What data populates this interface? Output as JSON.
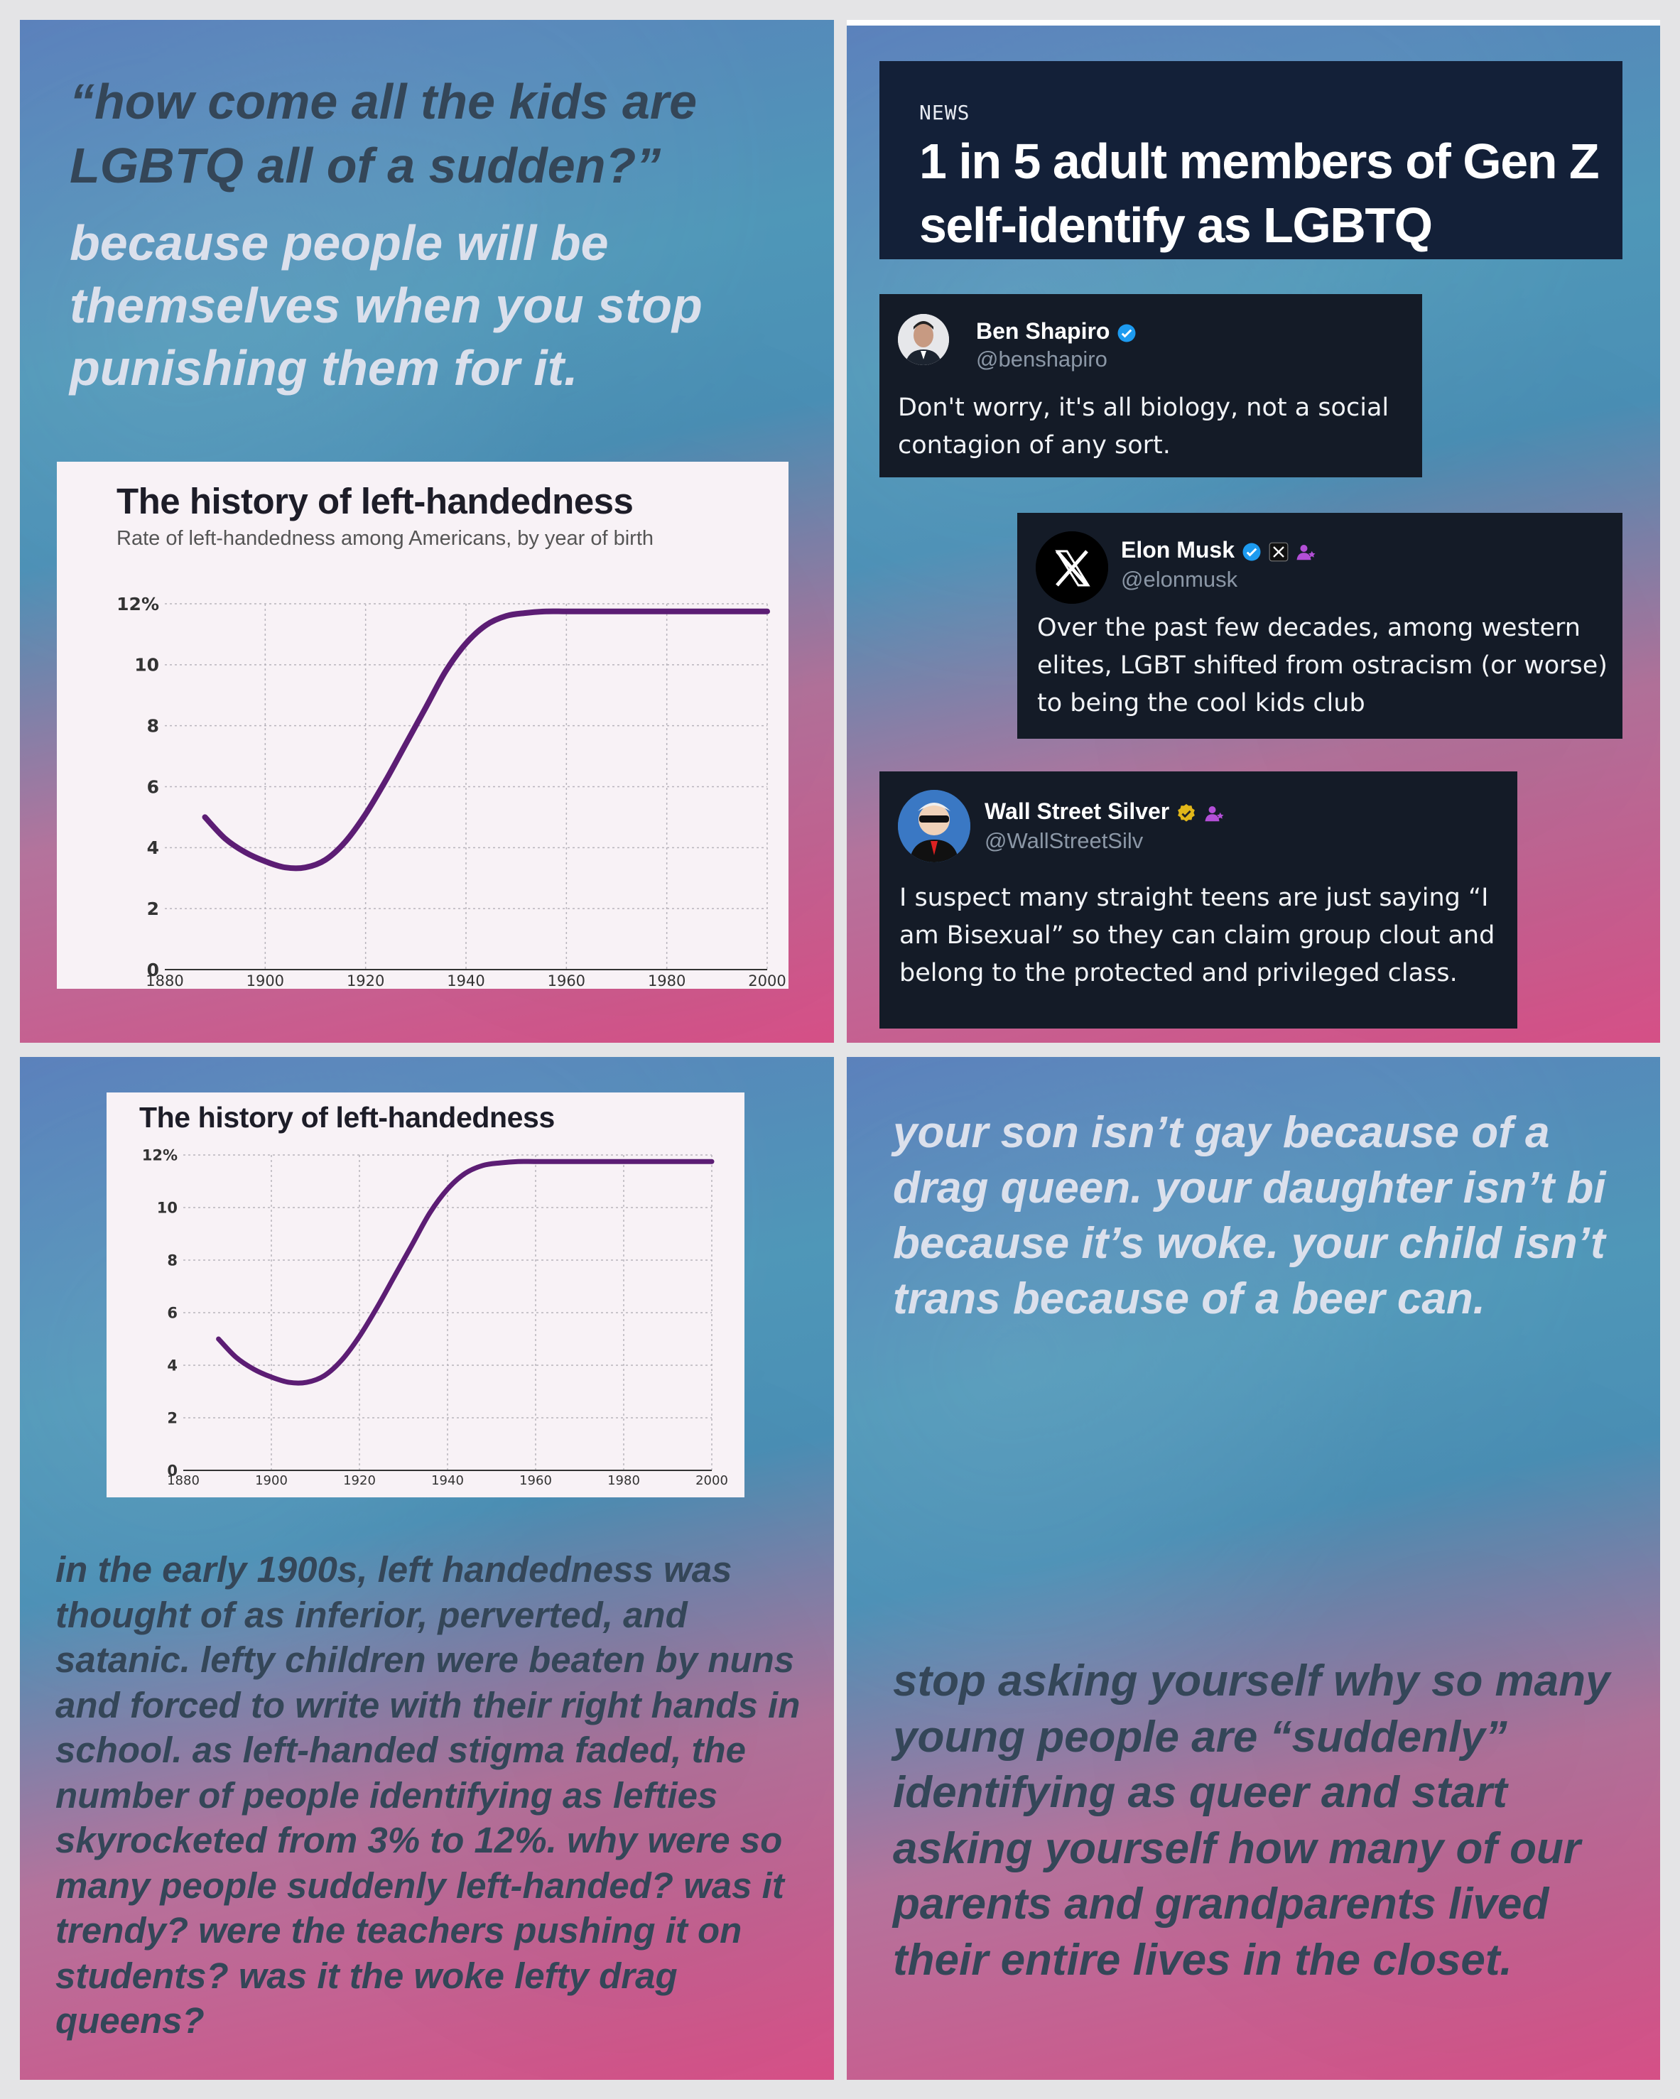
{
  "panel1": {
    "quote": "“how come all the kids are LGBTQ all of a sudden?”",
    "answer": "because people will be themselves when you stop punishing them for it."
  },
  "chart_title": "The history of left-handedness",
  "chart_subtitle": "Rate of left-handedness among Americans, by year of birth",
  "chart_data": [
    {
      "type": "line",
      "title": "The history of left-handedness",
      "subtitle": "Rate of left-handedness among Americans, by year of birth",
      "x_ticks": [
        "1880",
        "1900",
        "1920",
        "1940",
        "1960",
        "1980",
        "2000"
      ],
      "y_ticks": [
        "0",
        "2",
        "4",
        "6",
        "8",
        "10",
        "12%"
      ],
      "xlim": [
        1880,
        2000
      ],
      "ylim": [
        0,
        12
      ],
      "series": [
        {
          "x": [
            1888,
            1892,
            1896,
            1900,
            1904,
            1908,
            1912,
            1916,
            1920,
            1924,
            1928,
            1932,
            1936,
            1940,
            1944,
            1948,
            1952,
            1956,
            1960,
            1966,
            1972,
            1980,
            1990,
            2000
          ],
          "y": [
            5.0,
            4.3,
            3.85,
            3.55,
            3.35,
            3.35,
            3.6,
            4.2,
            5.1,
            6.2,
            7.4,
            8.6,
            9.8,
            10.7,
            11.3,
            11.6,
            11.7,
            11.75,
            11.75,
            11.75,
            11.75,
            11.75,
            11.75,
            11.75
          ]
        }
      ]
    },
    {
      "type": "line",
      "title": "The history of left-handedness",
      "x_ticks": [
        "1880",
        "1900",
        "1920",
        "1940",
        "1960",
        "1980",
        "2000"
      ],
      "y_ticks": [
        "0",
        "2",
        "4",
        "6",
        "8",
        "10",
        "12%"
      ],
      "xlim": [
        1880,
        2000
      ],
      "ylim": [
        0,
        12
      ],
      "series": [
        {
          "x": [
            1888,
            1892,
            1896,
            1900,
            1904,
            1908,
            1912,
            1916,
            1920,
            1924,
            1928,
            1932,
            1936,
            1940,
            1944,
            1948,
            1952,
            1956,
            1960,
            1966,
            1972,
            1980,
            1990,
            2000
          ],
          "y": [
            5.0,
            4.3,
            3.85,
            3.55,
            3.35,
            3.35,
            3.6,
            4.2,
            5.1,
            6.2,
            7.4,
            8.6,
            9.8,
            10.7,
            11.3,
            11.6,
            11.7,
            11.75,
            11.75,
            11.75,
            11.75,
            11.75,
            11.75,
            11.75
          ]
        }
      ]
    }
  ],
  "news": {
    "label": "NEWS",
    "headline": "1 in 5 adult members of Gen Z self-identify as LGBTQ"
  },
  "tweets": [
    {
      "name": "Ben Shapiro",
      "handle": "@benshapiro",
      "text": "Don't worry, it's all biology, not a social contagion of any sort."
    },
    {
      "name": "Elon Musk",
      "handle": "@elonmusk",
      "text": "Over the past few decades, among western elites, LGBT shifted from ostracism (or worse) to being the cool kids club"
    },
    {
      "name": "Wall Street Silver",
      "handle": "@WallStreetSilv",
      "text": "I suspect many straight teens are just saying “I am Bisexual” so they can claim group clout and belong to the protected and privileged class."
    }
  ],
  "panel3": {
    "text": "in the early 1900s, left handedness was thought of as inferior, perverted, and satanic. lefty children were beaten by nuns and forced to write with their right hands in school. as left-handed stigma faded, the number of people identifying as lefties skyrocketed from 3% to 12%. why were so many people suddenly left-handed? was it trendy? were the teachers pushing it on students? was it the woke lefty drag queens?"
  },
  "panel4": {
    "top": "your son isn’t gay because of a drag queen. your daughter isn’t bi because it’s woke. your child isn’t trans because of a beer can.",
    "bottom": "stop asking yourself why so many young people are “suddenly” identifying as queer and start asking yourself how many of our parents and grandparents lived their entire lives in the closet."
  },
  "colors": {
    "line": "#5c1d74",
    "verified_blue": "#1d9bf0",
    "verified_gold": "#e2b719",
    "affiliate_purple": "#b34fd6",
    "news_bg": "#132038",
    "tweet_bg": "#141b27"
  }
}
